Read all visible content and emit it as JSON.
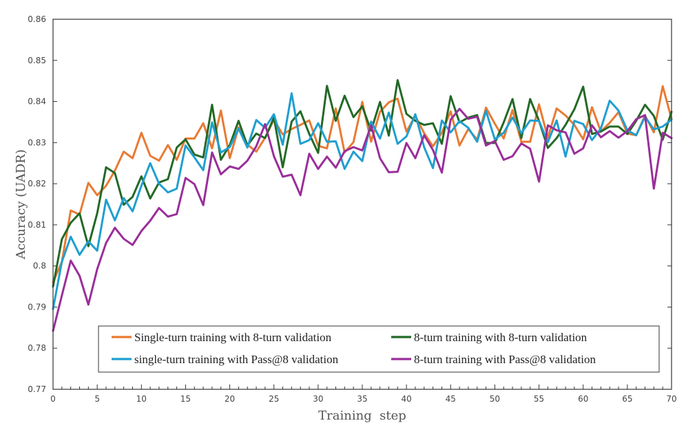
{
  "chart_data": {
    "type": "line",
    "title": "",
    "xlabel": "Training  step",
    "ylabel": "Accuracy (UADR)",
    "xlim": [
      0,
      70
    ],
    "ylim": [
      0.77,
      0.86
    ],
    "x_ticks": [
      0,
      5,
      10,
      15,
      20,
      25,
      30,
      35,
      40,
      45,
      50,
      55,
      60,
      65,
      70
    ],
    "y_ticks": [
      0.77,
      0.78,
      0.79,
      0.8,
      0.81,
      0.82,
      0.83,
      0.84,
      0.85,
      0.86
    ],
    "y_tick_labels": [
      "0.77",
      "0.78",
      "0.79",
      "0.8",
      "0.81",
      "0.82",
      "0.83",
      "0.84",
      "0.85",
      "0.86"
    ],
    "grid": false,
    "legend_position": "lower-center",
    "x": [
      0,
      1,
      2,
      3,
      4,
      5,
      6,
      7,
      8,
      9,
      10,
      11,
      12,
      13,
      14,
      15,
      16,
      17,
      18,
      19,
      20,
      21,
      22,
      23,
      24,
      25,
      26,
      27,
      28,
      29,
      30,
      31,
      32,
      33,
      34,
      35,
      36,
      37,
      38,
      39,
      40,
      41,
      42,
      43,
      44,
      45,
      46,
      47,
      48,
      49,
      50,
      51,
      52,
      53,
      54,
      55,
      56,
      57,
      58,
      59,
      60,
      61,
      62,
      63,
      64,
      65,
      66,
      67,
      68,
      69,
      70
    ],
    "series": [
      {
        "name": "Single-turn training with 8-turn validation",
        "color": "#e97a33",
        "values": [
          0.796,
          0.801,
          0.8135,
          0.8125,
          0.8202,
          0.8172,
          0.8195,
          0.8232,
          0.8278,
          0.8262,
          0.8324,
          0.8268,
          0.8256,
          0.8294,
          0.8258,
          0.831,
          0.831,
          0.8347,
          0.8286,
          0.8378,
          0.8262,
          0.8337,
          0.8295,
          0.8278,
          0.8312,
          0.8356,
          0.832,
          0.8333,
          0.8343,
          0.8354,
          0.8292,
          0.8286,
          0.8383,
          0.8276,
          0.8301,
          0.8399,
          0.8302,
          0.8375,
          0.8398,
          0.8407,
          0.8327,
          0.8365,
          0.8323,
          0.8291,
          0.8324,
          0.8376,
          0.8293,
          0.8333,
          0.8307,
          0.8385,
          0.8346,
          0.831,
          0.8379,
          0.8302,
          0.8302,
          0.8393,
          0.8312,
          0.8383,
          0.8366,
          0.8343,
          0.8308,
          0.8386,
          0.8327,
          0.8348,
          0.8374,
          0.8322,
          0.8318,
          0.8366,
          0.8325,
          0.8437,
          0.8358
        ]
      },
      {
        "name": "8-turn training with 8-turn validation",
        "color": "#236926",
        "values": [
          0.795,
          0.8065,
          0.8105,
          0.8128,
          0.8048,
          0.8128,
          0.824,
          0.8226,
          0.8149,
          0.8168,
          0.8218,
          0.8164,
          0.8203,
          0.8211,
          0.8288,
          0.8308,
          0.8271,
          0.8264,
          0.8392,
          0.8258,
          0.8294,
          0.8353,
          0.8293,
          0.8322,
          0.8311,
          0.8361,
          0.824,
          0.8351,
          0.8376,
          0.8321,
          0.8275,
          0.8438,
          0.8353,
          0.8414,
          0.8362,
          0.8388,
          0.8329,
          0.8399,
          0.8317,
          0.8452,
          0.837,
          0.8353,
          0.8343,
          0.8347,
          0.8297,
          0.8413,
          0.8349,
          0.8361,
          0.8367,
          0.8299,
          0.8299,
          0.8349,
          0.8406,
          0.8311,
          0.8406,
          0.8353,
          0.8287,
          0.8311,
          0.8343,
          0.8381,
          0.8436,
          0.8321,
          0.8327,
          0.8339,
          0.8339,
          0.8321,
          0.8353,
          0.8392,
          0.8365,
          0.8307,
          0.8375
        ]
      },
      {
        "name": "single-turn training with Pass@8 validation",
        "color": "#1f9fd0",
        "values": [
          0.7895,
          0.801,
          0.8071,
          0.8027,
          0.806,
          0.8037,
          0.8161,
          0.8111,
          0.8165,
          0.8133,
          0.8195,
          0.825,
          0.82,
          0.8179,
          0.8188,
          0.8293,
          0.8264,
          0.8233,
          0.8349,
          0.8276,
          0.8289,
          0.8334,
          0.8288,
          0.8355,
          0.8336,
          0.8369,
          0.8295,
          0.842,
          0.8297,
          0.8306,
          0.8347,
          0.8302,
          0.8303,
          0.8236,
          0.8278,
          0.8255,
          0.8351,
          0.831,
          0.8373,
          0.8297,
          0.8315,
          0.8369,
          0.8289,
          0.8238,
          0.8354,
          0.8325,
          0.8352,
          0.8336,
          0.8302,
          0.8377,
          0.8308,
          0.8324,
          0.8361,
          0.8323,
          0.8354,
          0.8353,
          0.8301,
          0.8354,
          0.8266,
          0.8353,
          0.8345,
          0.8306,
          0.8334,
          0.8402,
          0.8378,
          0.833,
          0.8318,
          0.8363,
          0.8332,
          0.8339,
          0.8356
        ]
      },
      {
        "name": "8-turn training with Pass@8 validation",
        "color": "#9a2e9a",
        "values": [
          0.7842,
          0.7928,
          0.8013,
          0.7976,
          0.7906,
          0.7992,
          0.8056,
          0.8093,
          0.8066,
          0.8051,
          0.8085,
          0.811,
          0.8141,
          0.812,
          0.8126,
          0.8214,
          0.8199,
          0.8148,
          0.8276,
          0.8223,
          0.8242,
          0.8236,
          0.8256,
          0.8291,
          0.8345,
          0.8267,
          0.8217,
          0.8222,
          0.8172,
          0.8273,
          0.8236,
          0.8266,
          0.8239,
          0.8279,
          0.8289,
          0.8281,
          0.8342,
          0.8262,
          0.8228,
          0.8229,
          0.8299,
          0.8262,
          0.8318,
          0.8282,
          0.8227,
          0.8356,
          0.8382,
          0.8358,
          0.8363,
          0.8293,
          0.8304,
          0.8258,
          0.8267,
          0.8298,
          0.8285,
          0.8205,
          0.8342,
          0.833,
          0.8325,
          0.8273,
          0.8286,
          0.8342,
          0.8313,
          0.8328,
          0.8312,
          0.8328,
          0.8357,
          0.8367,
          0.8188,
          0.8324,
          0.8311
        ]
      }
    ],
    "legend": [
      "Single-turn training with 8-turn validation",
      "8-turn training with 8-turn validation",
      "single-turn training with Pass@8 validation",
      "8-turn training with Pass@8 validation"
    ]
  }
}
